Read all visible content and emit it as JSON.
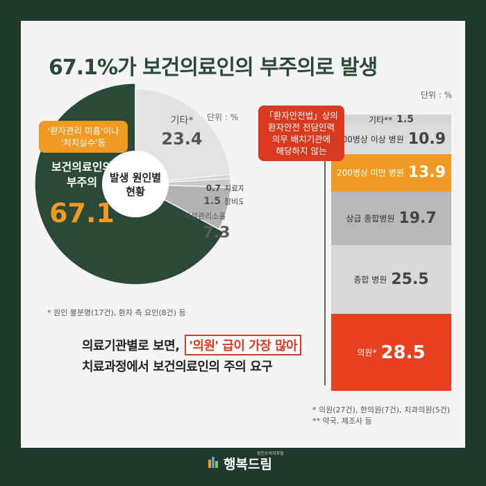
{
  "title": "67.1%가 보건의료인의 부주의로 발생",
  "chart_data": [
    {
      "type": "pie",
      "unit": "단위 : %",
      "center_label": [
        "발생 원인별",
        "현황"
      ],
      "slices": [
        {
          "label": [
            "보건의료인의",
            "부주의"
          ],
          "value": 67.1,
          "color": "#2a4a37"
        },
        {
          "label": [
            "기타*"
          ],
          "value": 23.4,
          "color": "#e3e3e3"
        },
        {
          "label": [
            "치료재료결함"
          ],
          "value": 0.7,
          "color": "#d4d4d4"
        },
        {
          "label": [
            "장비오류"
          ],
          "value": 1.5,
          "color": "#c9c9c9"
        },
        {
          "label": [
            "시설관리소홀"
          ],
          "value": 7.3,
          "color": "#b3b3b3"
        }
      ],
      "callout": [
        "'환자관리 미흡'이나",
        "'처치실수'등"
      ],
      "footnote": "* 원인 불분명(17건), 환자 측 요인(8건) 등"
    },
    {
      "type": "bar",
      "unit": "단위 : %",
      "categories": [
        "기타**",
        "200병상 이상 병원",
        "200병상 미만 병원",
        "상급 종합병원",
        "종합 병원",
        "의원*"
      ],
      "values": [
        1.5,
        10.9,
        13.9,
        19.7,
        25.5,
        28.5
      ],
      "colors": [
        "#d6d6d6",
        "#dcdcdc",
        "#f19a23",
        "#b9b9b9",
        "#d9d9d9",
        "#e8411f"
      ],
      "callout": [
        "「환자안전법」상의",
        "환자안전 전담인력",
        "의무 배치기관에",
        "해당하지 않는"
      ],
      "footnotes": [
        "* 의원(27건), 한의원(7건), 치과의원(5건)",
        "** 약국, 제조사 등"
      ]
    }
  ],
  "summary": {
    "line1_before": "의료기관별로 보면,",
    "highlight": "'의원' 급이 가장 많아",
    "line2": "치료과정에서 보건의료인의 주의 요구"
  },
  "logo": {
    "name": "행복드림",
    "tagline": "범인소비자포털"
  }
}
